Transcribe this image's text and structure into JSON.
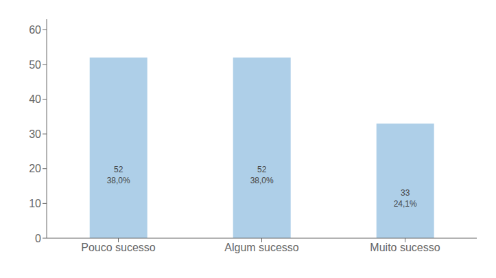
{
  "chart_data": {
    "type": "bar",
    "categories": [
      "Pouco sucesso",
      "Algum sucesso",
      "Muito sucesso"
    ],
    "values": [
      52,
      52,
      33
    ],
    "percentages": [
      {
        "value": 38.0,
        "label": "38,0%"
      },
      {
        "value": 38.0,
        "label": "38,0%"
      },
      {
        "value": 24.1,
        "label": "24,1%"
      }
    ],
    "color": "#aecfe8",
    "ylim": [
      0,
      63
    ],
    "yticks": [
      0,
      10,
      20,
      30,
      40,
      50,
      60
    ],
    "grid": false,
    "data_labels": true
  }
}
